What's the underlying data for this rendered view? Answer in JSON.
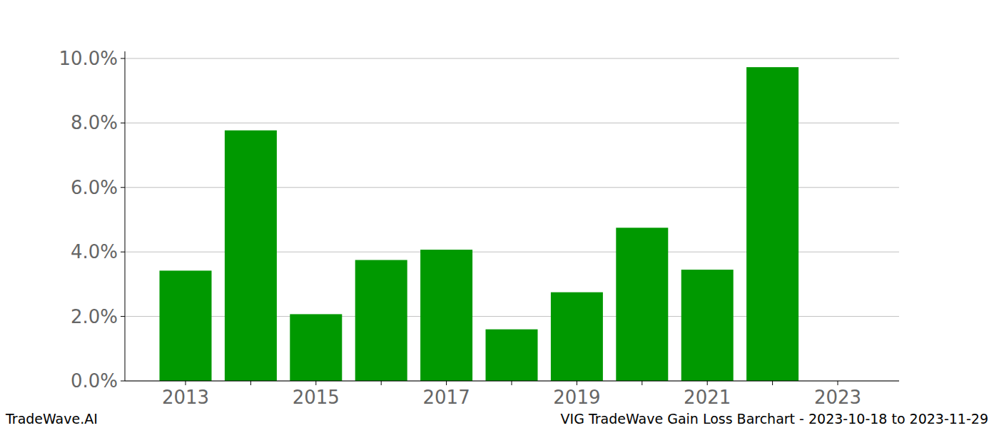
{
  "chart_data": {
    "type": "bar",
    "title": "VIG TradeWave Gain Loss Barchart - 2023-10-18 to 2023-11-29",
    "annotations": [
      "TradeWave.AI"
    ],
    "categories": [
      "2013",
      null,
      "2015",
      null,
      "2017",
      null,
      "2019",
      null,
      "2021",
      null,
      "2023"
    ],
    "values": [
      3.42,
      7.77,
      2.07,
      3.75,
      4.07,
      1.6,
      2.75,
      4.75,
      3.45,
      9.73,
      null
    ],
    "color": "#009900",
    "ylim": [
      0,
      10.22
    ],
    "yticks": [
      {
        "value": 0,
        "label": "0.0%"
      },
      {
        "value": 2,
        "label": "2.0%"
      },
      {
        "value": 4,
        "label": "4.0%"
      },
      {
        "value": 6,
        "label": "6.0%"
      },
      {
        "value": 8,
        "label": "8.0%"
      },
      {
        "value": 10,
        "label": "10.0%"
      }
    ],
    "grid": true
  }
}
